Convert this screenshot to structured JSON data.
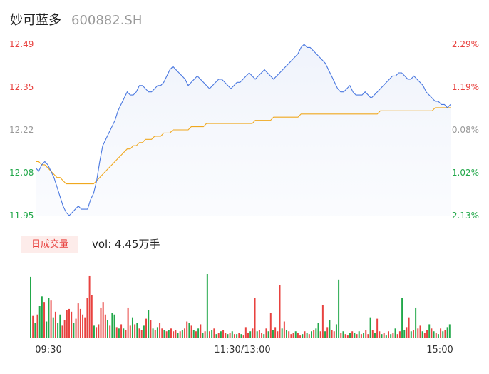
{
  "header": {
    "name": "妙可蓝多",
    "code": "600882.SH"
  },
  "colors": {
    "up": "#e8423f",
    "down": "#22a84a",
    "neutral": "#999999",
    "price_line": "#4a78e0",
    "avg_line": "#f0a81e"
  },
  "chart_data": [
    {
      "type": "line",
      "title": "",
      "y_labels_left": [
        "12.49",
        "12.35",
        "12.22",
        "12.08",
        "11.95"
      ],
      "y_labels_right": [
        "2.29%",
        "1.19%",
        "0.08%",
        "-1.02%",
        "-2.13%"
      ],
      "ylim": [
        11.95,
        12.49
      ],
      "prev_close": 12.21,
      "x_labels": [
        "09:30",
        "11:30/13:00",
        "15:00"
      ],
      "series": [
        {
          "values": [
            12.1,
            12.09,
            12.11,
            12.12,
            12.11,
            12.09,
            12.07,
            12.04,
            12.01,
            11.98,
            11.96,
            11.95,
            11.96,
            11.97,
            11.98,
            11.97,
            11.97,
            11.97,
            12.0,
            12.02,
            12.06,
            12.12,
            12.17,
            12.19,
            12.21,
            12.23,
            12.25,
            12.28,
            12.3,
            12.32,
            12.34,
            12.33,
            12.33,
            12.34,
            12.36,
            12.36,
            12.35,
            12.34,
            12.34,
            12.35,
            12.36,
            12.36,
            12.37,
            12.39,
            12.41,
            12.42,
            12.41,
            12.4,
            12.39,
            12.38,
            12.36,
            12.37,
            12.38,
            12.39,
            12.38,
            12.37,
            12.36,
            12.35,
            12.36,
            12.37,
            12.38,
            12.38,
            12.37,
            12.36,
            12.35,
            12.36,
            12.37,
            12.37,
            12.38,
            12.39,
            12.4,
            12.39,
            12.38,
            12.39,
            12.4,
            12.41,
            12.4,
            12.39,
            12.38,
            12.39,
            12.4,
            12.41,
            12.42,
            12.43,
            12.44,
            12.45,
            12.46,
            12.48,
            12.49,
            12.48,
            12.48,
            12.47,
            12.46,
            12.45,
            12.44,
            12.43,
            12.41,
            12.39,
            12.37,
            12.35,
            12.34,
            12.34,
            12.35,
            12.36,
            12.34,
            12.33,
            12.33,
            12.33,
            12.34,
            12.33,
            12.32,
            12.33,
            12.34,
            12.35,
            12.36,
            12.37,
            12.38,
            12.39,
            12.39,
            12.4,
            12.4,
            12.39,
            12.38,
            12.38,
            12.39,
            12.38,
            12.37,
            12.36,
            12.34,
            12.33,
            12.32,
            12.31,
            12.31,
            12.3,
            12.3,
            12.29,
            12.3
          ]
        },
        {
          "values": [
            12.12,
            12.12,
            12.11,
            12.11,
            12.1,
            12.09,
            12.08,
            12.07,
            12.07,
            12.06,
            12.05,
            12.05,
            12.05,
            12.05,
            12.05,
            12.05,
            12.05,
            12.05,
            12.05,
            12.05,
            12.06,
            12.07,
            12.08,
            12.09,
            12.1,
            12.11,
            12.12,
            12.13,
            12.14,
            12.15,
            12.16,
            12.16,
            12.17,
            12.17,
            12.18,
            12.18,
            12.19,
            12.19,
            12.19,
            12.2,
            12.2,
            12.2,
            12.21,
            12.21,
            12.21,
            12.22,
            12.22,
            12.22,
            12.22,
            12.22,
            12.22,
            12.23,
            12.23,
            12.23,
            12.23,
            12.23,
            12.24,
            12.24,
            12.24,
            12.24,
            12.24,
            12.24,
            12.24,
            12.24,
            12.24,
            12.24,
            12.24,
            12.24,
            12.24,
            12.24,
            12.24,
            12.24,
            12.25,
            12.25,
            12.25,
            12.25,
            12.25,
            12.25,
            12.26,
            12.26,
            12.26,
            12.26,
            12.26,
            12.26,
            12.26,
            12.26,
            12.26,
            12.27,
            12.27,
            12.27,
            12.27,
            12.27,
            12.27,
            12.27,
            12.27,
            12.27,
            12.27,
            12.27,
            12.27,
            12.27,
            12.27,
            12.27,
            12.27,
            12.27,
            12.27,
            12.27,
            12.27,
            12.27,
            12.27,
            12.27,
            12.27,
            12.27,
            12.27,
            12.28,
            12.28,
            12.28,
            12.28,
            12.28,
            12.28,
            12.28,
            12.28,
            12.28,
            12.28,
            12.28,
            12.28,
            12.28,
            12.28,
            12.28,
            12.28,
            12.28,
            12.28,
            12.29,
            12.29,
            12.29,
            12.29,
            12.29,
            12.29
          ]
        }
      ],
      "grid": false
    },
    {
      "type": "bar",
      "title": "",
      "tab_label": "日成交量",
      "volume_label": "vol: 4.45万手",
      "x_labels": [
        "09:30",
        "11:30/13:00",
        "15:00"
      ],
      "values": [
        88,
        32,
        22,
        34,
        46,
        60,
        52,
        24,
        58,
        54,
        30,
        38,
        22,
        34,
        18,
        26,
        40,
        42,
        38,
        22,
        28,
        50,
        42,
        34,
        30,
        58,
        90,
        62,
        18,
        16,
        20,
        44,
        52,
        34,
        26,
        18,
        36,
        34,
        16,
        14,
        20,
        14,
        12,
        44,
        18,
        30,
        20,
        22,
        14,
        12,
        18,
        28,
        40,
        26,
        14,
        12,
        16,
        22,
        14,
        12,
        10,
        12,
        14,
        10,
        12,
        8,
        10,
        12,
        14,
        24,
        22,
        18,
        12,
        10,
        14,
        20,
        8,
        10,
        92,
        10,
        12,
        14,
        6,
        8,
        10,
        12,
        8,
        6,
        8,
        10,
        6,
        6,
        8,
        6,
        4,
        16,
        8,
        10,
        14,
        58,
        10,
        12,
        8,
        6,
        14,
        10,
        36,
        12,
        16,
        10,
        76,
        14,
        24,
        12,
        10,
        6,
        8,
        10,
        8,
        4,
        6,
        10,
        8,
        6,
        10,
        12,
        14,
        22,
        10,
        48,
        10,
        16,
        26,
        12,
        10,
        20,
        84,
        8,
        10,
        6,
        4,
        8,
        10,
        8,
        6,
        10,
        6,
        8,
        12,
        6,
        30,
        12,
        8,
        28,
        10,
        6,
        8,
        4,
        10,
        6,
        8,
        14,
        6,
        10,
        58,
        12,
        16,
        30,
        10,
        12,
        44,
        14,
        18,
        10,
        8,
        12,
        20,
        14,
        10,
        8,
        6,
        14,
        10,
        12,
        16,
        20
      ],
      "colors": [
        "down",
        "up",
        "down",
        "up",
        "down",
        "down",
        "up",
        "down",
        "down",
        "up",
        "down",
        "up",
        "down",
        "down",
        "up",
        "up",
        "up",
        "up",
        "up",
        "down",
        "up",
        "up",
        "up",
        "up",
        "up",
        "up",
        "up",
        "up",
        "down",
        "up",
        "up",
        "up",
        "up",
        "up",
        "down",
        "up",
        "down",
        "down",
        "up",
        "down",
        "up",
        "down",
        "up",
        "up",
        "up",
        "down",
        "up",
        "down",
        "up",
        "up",
        "down",
        "up",
        "down",
        "up",
        "down",
        "up",
        "down",
        "up",
        "up",
        "down",
        "up",
        "down",
        "up",
        "up",
        "up",
        "down",
        "up",
        "down",
        "up",
        "up",
        "down",
        "up",
        "down",
        "up",
        "down",
        "up",
        "down",
        "up",
        "down",
        "up",
        "down",
        "up",
        "down",
        "up",
        "down",
        "up",
        "up",
        "down",
        "up",
        "down",
        "up",
        "down",
        "up",
        "down",
        "up",
        "up",
        "up",
        "down",
        "up",
        "up",
        "down",
        "up",
        "up",
        "down",
        "up",
        "down",
        "up",
        "down",
        "up",
        "up",
        "up",
        "down",
        "up",
        "down",
        "up",
        "up",
        "up",
        "down",
        "up",
        "up",
        "down",
        "up",
        "down",
        "up",
        "down",
        "up",
        "down",
        "down",
        "up",
        "up",
        "down",
        "up",
        "down",
        "up",
        "up",
        "down",
        "down",
        "up",
        "down",
        "up",
        "up",
        "down",
        "up",
        "down",
        "up",
        "down",
        "up",
        "down",
        "up",
        "up",
        "down",
        "up",
        "down",
        "up",
        "up",
        "down",
        "up",
        "down",
        "up",
        "down",
        "up",
        "down",
        "up",
        "up",
        "down",
        "down",
        "up",
        "up",
        "down",
        "up",
        "down",
        "up",
        "up",
        "down",
        "up",
        "up",
        "down",
        "up",
        "down",
        "up",
        "down",
        "up",
        "down",
        "up"
      ],
      "grid": false
    }
  ]
}
